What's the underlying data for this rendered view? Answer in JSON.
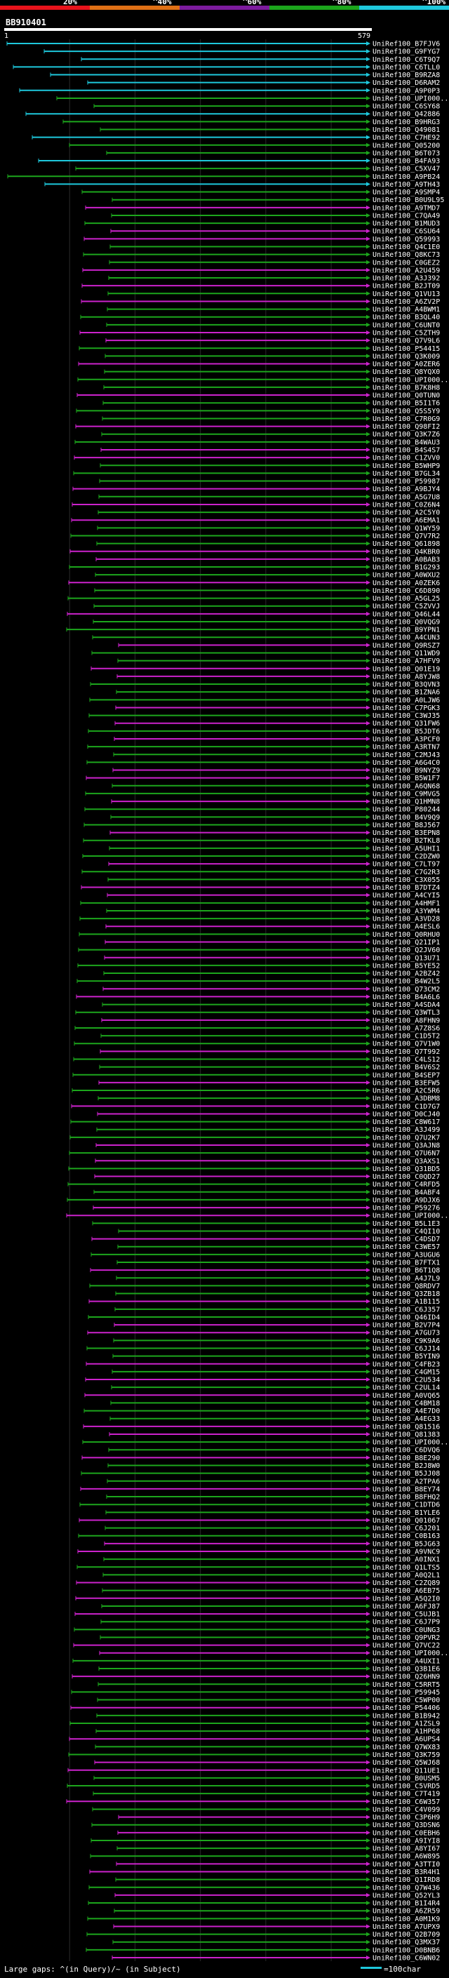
{
  "chart_data": {
    "type": "alignment-overview",
    "query_id": "BB910401",
    "query_start_label": "1",
    "query_end_label": "579",
    "percent_identity_legend": [
      {
        "label": "20%",
        "color": "#e8131b"
      },
      {
        "label": "^40%",
        "color": "#e07015"
      },
      {
        "label": "^60%",
        "color": "#7d1b9e"
      },
      {
        "label": "^80%",
        "color": "#1ca61c"
      },
      {
        "label": "^100%",
        "color": "#1ec8dc"
      }
    ],
    "hit_labels": [
      "UniRef100_B7FJV6",
      "UniRef100_G9FYG7",
      "UniRef100_C6T9Q7",
      "UniRef100_C6TLL0",
      "UniRef100_B9RZA8",
      "UniRef100_D6RAM2",
      "UniRef100_A9P0P3",
      "UniRef100_UPI000...",
      "UniRef100_C6SY68",
      "UniRef100_Q42886",
      "UniRef100_B9HRG3",
      "UniRef100_Q49081",
      "UniRef100_C7HE92",
      "UniRef100_Q05200",
      "UniRef100_B6T073",
      "UniRef100_B4FA93",
      "UniRef100_C5XV47",
      "UniRef100_A9PB24",
      "UniRef100_A9TH43",
      "UniRef100_A9SMP4",
      "UniRef100_B0U9L95",
      "UniRef100_A9TMD7",
      "UniRef100_C7QA49",
      "UniRef100_B1MUD3",
      "UniRef100_C6SU64",
      "UniRef100_Q59993",
      "UniRef100_Q4C1E0",
      "UniRef100_Q8KC73",
      "UniRef100_C0GEZ2",
      "UniRef100_A2U459",
      "UniRef100_A3J392",
      "UniRef100_B2JT09",
      "UniRef100_Q1VU13",
      "UniRef100_A6ZV2P",
      "UniRef100_A4BWM1",
      "UniRef100_B3QL40",
      "UniRef100_C6UNT0",
      "UniRef100_C5ZTH9",
      "UniRef100_Q7V9L6",
      "UniRef100_P54415",
      "UniRef100_Q3K009",
      "UniRef100_A0ZER6",
      "UniRef100_Q8YQX0",
      "UniRef100_UPI000...",
      "UniRef100_B7K8H8",
      "UniRef100_Q0TUN0",
      "UniRef100_B5I1T6",
      "UniRef100_Q5S5Y9",
      "UniRef100_C7R0G9",
      "UniRef100_Q98FI2",
      "UniRef100_Q3K7Z6",
      "UniRef100_B4WAU3",
      "UniRef100_B4S4S7",
      "UniRef100_C1ZVV0",
      "UniRef100_B5WHP9",
      "UniRef100_B7GL34",
      "UniRef100_P59987",
      "UniRef100_A9BJY4",
      "UniRef100_A5G7U8",
      "UniRef100_C0Z6N4",
      "UniRef100_A2C5Y0",
      "UniRef100_A6EMA1",
      "UniRef100_Q1WY59",
      "UniRef100_Q7V7R2",
      "UniRef100_Q61898",
      "UniRef100_Q4KBR0",
      "UniRef100_A0BAB3",
      "UniRef100_B1G293",
      "UniRef100_A0WXU2",
      "UniRef100_A0ZEK6",
      "UniRef100_C6D890",
      "UniRef100_A5GL25",
      "UniRef100_C5ZVVJ",
      "UniRef100_Q46L44",
      "UniRef100_Q0VQG9",
      "UniRef100_B9YPN1",
      "UniRef100_A4CUN3",
      "UniRef100_Q9RSZ7",
      "UniRef100_Q11WD9",
      "UniRef100_A7HFV9",
      "UniRef100_Q01E19",
      "UniRef100_A8YJW8",
      "UniRef100_B3QVN3",
      "UniRef100_B1ZNA6",
      "UniRef100_A0LJW6",
      "UniRef100_C7PGK3",
      "UniRef100_C3WJ35",
      "UniRef100_Q31FW6",
      "UniRef100_B5JDT6",
      "UniRef100_A3PCF0",
      "UniRef100_A3RTN7",
      "UniRef100_C2MJ43",
      "UniRef100_A6G4C0",
      "UniRef100_B9NYZ9",
      "UniRef100_B5W1F7",
      "UniRef100_A6QN68",
      "UniRef100_C9MVG5",
      "UniRef100_Q1HMN8",
      "UniRef100_P80244",
      "UniRef100_B4V9Q9",
      "UniRef100_B8J567",
      "UniRef100_B3EPN8",
      "UniRef100_B2TKL8",
      "UniRef100_A5UHI1",
      "UniRef100_C2DZW0",
      "UniRef100_C7LT97",
      "UniRef100_C7G2R3",
      "UniRef100_C3X055",
      "UniRef100_B7DTZ4",
      "UniRef100_A4CYI5",
      "UniRef100_A4HMF1",
      "UniRef100_A3YWM4",
      "UniRef100_A3VD28",
      "UniRef100_A4ESL6",
      "UniRef100_Q0RHU0",
      "UniRef100_Q21IP1",
      "UniRef100_Q2JV60",
      "UniRef100_Q13U71",
      "UniRef100_B5YE52",
      "UniRef100_A2BZ42",
      "UniRef100_B4W2L5",
      "UniRef100_Q73CM2",
      "UniRef100_B4A6L6",
      "UniRef100_A4SDA4",
      "UniRef100_Q3WTL3",
      "UniRef100_A8FHN9",
      "UniRef100_A7Z8S6",
      "UniRef100_C1D5T2",
      "UniRef100_Q7V1W0",
      "UniRef100_Q7T992",
      "UniRef100_C4LS12",
      "UniRef100_B4V6S2",
      "UniRef100_B4SEP7",
      "UniRef100_B3EFW5",
      "UniRef100_A2C5R6",
      "UniRef100_A3DBM8",
      "UniRef100_C1D7G7",
      "UniRef100_D0CJ40",
      "UniRef100_C8W617",
      "UniRef100_A3J499",
      "UniRef100_Q7U2K7",
      "UniRef100_Q3AJN8",
      "UniRef100_Q7U6N7",
      "UniRef100_Q3AXS1",
      "UniRef100_Q31BD5",
      "UniRef100_C0QD27",
      "UniRef100_C4RFD5",
      "UniRef100_B4ABF4",
      "UniRef100_A9DJX6",
      "UniRef100_P59276",
      "UniRef100_UPI000...",
      "UniRef100_B5L1E3",
      "UniRef100_C4QI10",
      "UniRef100_C4DSD7",
      "UniRef100_C3WE57",
      "UniRef100_A3UGU6",
      "UniRef100_B7FTX1",
      "UniRef100_B6T1Q8",
      "UniRef100_A4J7L9",
      "UniRef100_Q8RDV7",
      "UniRef100_Q3ZB18",
      "UniRef100_A1B115",
      "UniRef100_C6J357",
      "UniRef100_Q46ID4",
      "UniRef100_B2V7P4",
      "UniRef100_A7GU73",
      "UniRef100_C9K9A6",
      "UniRef100_C6JJ14",
      "UniRef100_B5YIN9",
      "UniRef100_C4FB23",
      "UniRef100_C4GM15",
      "UniRef100_C2U534",
      "UniRef100_C2UL14",
      "UniRef100_A0VQ65",
      "UniRef100_C4BM18",
      "UniRef100_A4E7D0",
      "UniRef100_A4EG33",
      "UniRef100_Q81516",
      "UniRef100_Q81383",
      "UniRef100_UPI000...",
      "UniRef100_C6DVQ6",
      "UniRef100_B8E290",
      "UniRef100_B2J8W0",
      "UniRef100_B5JJ08",
      "UniRef100_A2TPA6",
      "UniRef100_B8EY74",
      "UniRef100_B8FHQ2",
      "UniRef100_C1DTD6",
      "UniRef100_B1YLE6",
      "UniRef100_Q01067",
      "UniRef100_C6J201",
      "UniRef100_C0B163",
      "UniRef100_B5JG63",
      "UniRef100_A9VNC9",
      "UniRef100_A0INX1",
      "UniRef100_Q1LTS5",
      "UniRef100_A0Q2L1",
      "UniRef100_C2ZQ89",
      "UniRef100_A6EB75",
      "UniRef100_A5Q2I0",
      "UniRef100_A6FJ87",
      "UniRef100_C5UJB1",
      "UniRef100_C6J7P9",
      "UniRef100_C0UNG3",
      "UniRef100_Q9PVR2",
      "UniRef100_Q7VC22",
      "UniRef100_UPI000...",
      "UniRef100_A4UXI1",
      "UniRef100_Q3B1E6",
      "UniRef100_Q26HN9",
      "UniRef100_C5RRT5",
      "UniRef100_P59945",
      "UniRef100_C5WP00",
      "UniRef100_P54406",
      "UniRef100_B1B942",
      "UniRef100_A1ZSL9",
      "UniRef100_A1HP68",
      "UniRef100_A6UPS4",
      "UniRef100_Q7WX83",
      "UniRef100_Q3K759",
      "UniRef100_Q5WJ68",
      "UniRef100_Q11UE1",
      "UniRef100_B0USM5",
      "UniRef100_C5VRD5",
      "UniRef100_C7T419",
      "UniRef100_C6W357",
      "UniRef100_C4V099",
      "UniRef100_C3P6H9",
      "UniRef100_Q3DSN6",
      "UniRef100_C0EBH6",
      "UniRef100_A9IYI8",
      "UniRef100_A8YI67",
      "UniRef100_A6W895",
      "UniRef100_A3TTI0",
      "UniRef100_B3R4H1",
      "UniRef100_Q1IRD8",
      "UniRef100_Q7W436",
      "UniRef100_Q52YL3",
      "UniRef100_B1I4R4",
      "UniRef100_A6ZR59",
      "UniRef100_A0M1K9",
      "UniRef100_A7UPX9",
      "UniRef100_Q2B709",
      "UniRef100_Q3MX37",
      "UniRef100_D0BNB6",
      "UniRef100_C6WN02"
    ],
    "scale_label": "=100char",
    "footer": "Large gaps: ^(in Query)/~ (in Subject)"
  }
}
